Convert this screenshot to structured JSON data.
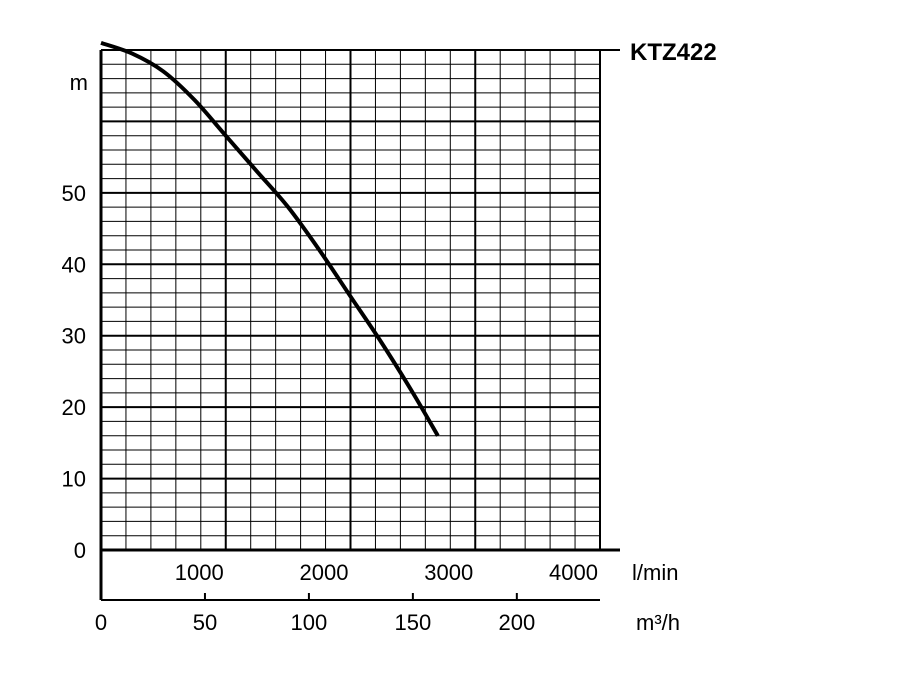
{
  "chart_data": {
    "type": "line",
    "title": "KTZ422",
    "ylabel": "m",
    "xlabel_primary": "l/min",
    "xlabel_secondary": "m³/h",
    "x_unit": "l/min",
    "xlim": [
      0,
      4000
    ],
    "ylim": [
      0,
      70
    ],
    "y_ticks": [
      "0",
      "10",
      "20",
      "30",
      "40",
      "50"
    ],
    "y_tick_values": [
      0,
      10,
      20,
      30,
      40,
      50
    ],
    "x_ticks_primary": [
      "1000",
      "2000",
      "3000",
      "4000"
    ],
    "x_tick_values_primary": [
      1000,
      2000,
      3000,
      4000
    ],
    "x_ticks_secondary": [
      "0",
      "50",
      "100",
      "150",
      "200"
    ],
    "x_tick_values_secondary": [
      0,
      50,
      100,
      150,
      200
    ],
    "grid": true,
    "series": [
      {
        "x": [
          0,
          250,
          500,
          750,
          1000,
          1250,
          1500,
          1750,
          2000,
          2250,
          2500,
          2700
        ],
        "y": [
          71,
          69.5,
          67,
          63,
          58,
          53,
          48,
          42,
          35.5,
          29,
          22,
          16
        ]
      }
    ]
  }
}
